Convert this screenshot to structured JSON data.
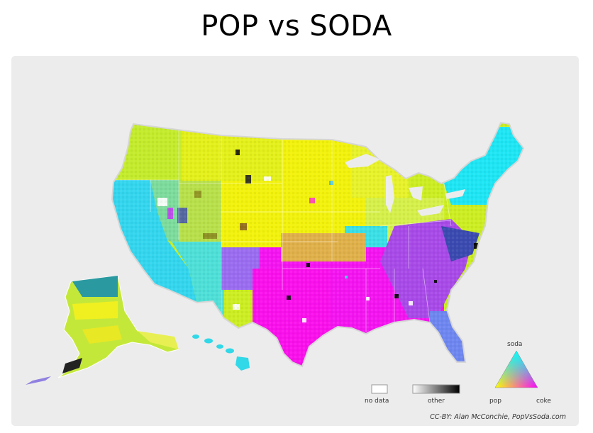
{
  "title": "POP vs SODA",
  "legend": {
    "no_data_label": "no data",
    "other_label": "other",
    "triangle": {
      "top_label": "soda",
      "left_label": "pop",
      "right_label": "coke"
    }
  },
  "credit": "CC-BY: Alan McConchie, PopVsSoda.com",
  "colors": {
    "background": "#ececec",
    "pop": "#ffff00",
    "soda": "#00ffff",
    "coke": "#ff00ff",
    "no_data": "#ffffff",
    "other_dark": "#000000"
  },
  "regions": [
    {
      "name": "pacific-coast",
      "term": "soda"
    },
    {
      "name": "southwest",
      "term": "soda"
    },
    {
      "name": "intermountain-west",
      "term": "mixed pop/soda"
    },
    {
      "name": "northern-plains-midwest",
      "term": "pop"
    },
    {
      "name": "northeast",
      "term": "soda"
    },
    {
      "name": "ohio-valley",
      "term": "mixed pop/soda"
    },
    {
      "name": "south",
      "term": "coke"
    },
    {
      "name": "texas",
      "term": "coke"
    },
    {
      "name": "florida",
      "term": "mixed coke/soda"
    },
    {
      "name": "alaska",
      "term": "mixed pop/soda"
    },
    {
      "name": "hawaii",
      "term": "soda"
    }
  ]
}
